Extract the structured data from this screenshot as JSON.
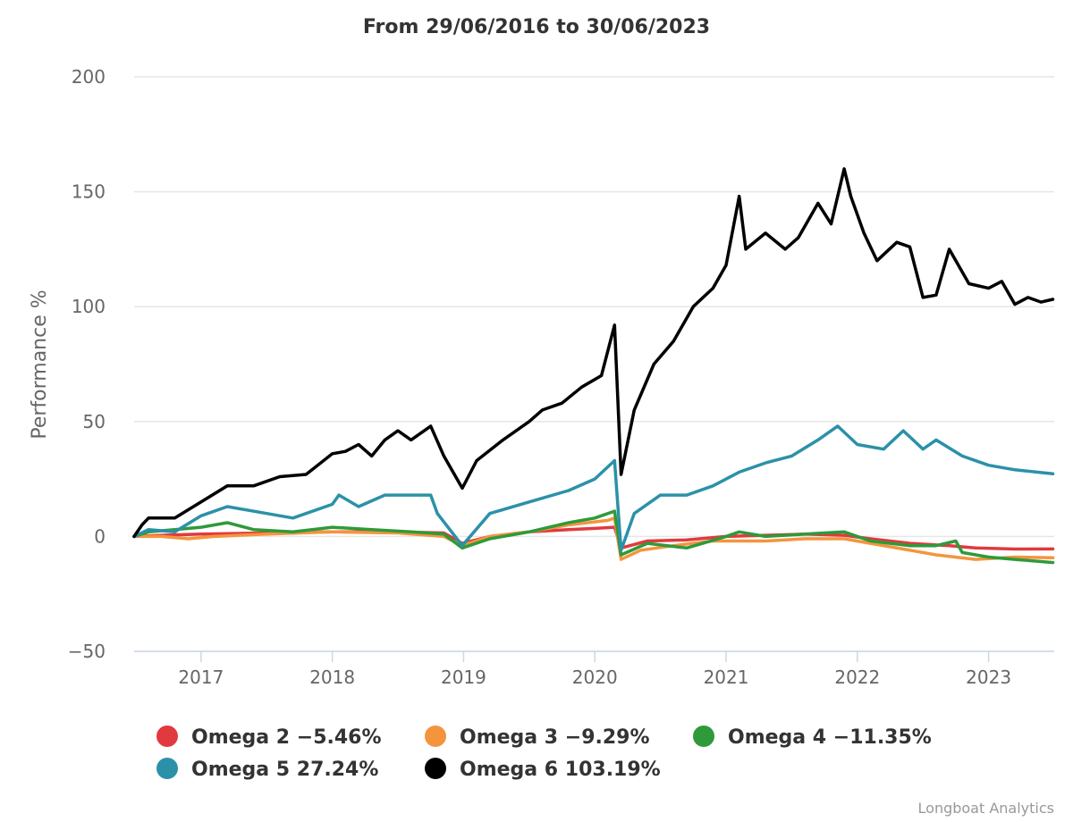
{
  "chart_data": {
    "type": "line",
    "title": "From 29/06/2016 to 30/06/2023",
    "ylabel": "Performance %",
    "xlabel": "",
    "xlim": [
      2016.49,
      2023.5
    ],
    "ylim": [
      -50,
      200
    ],
    "y_ticks": [
      -50,
      0,
      50,
      100,
      150,
      200
    ],
    "x_ticks": [
      {
        "value": 2017,
        "label": "2017"
      },
      {
        "value": 2018,
        "label": "2018"
      },
      {
        "value": 2019,
        "label": "2019"
      },
      {
        "value": 2020,
        "label": "2020"
      },
      {
        "value": 2021,
        "label": "2021"
      },
      {
        "value": 2022,
        "label": "2022"
      },
      {
        "value": 2023,
        "label": "2023"
      }
    ],
    "grid": true,
    "legend_position": "bottom",
    "credits": "Longboat Analytics",
    "series": [
      {
        "name": "Omega 2",
        "legend_label": "Omega 2 -5.46%",
        "color": "#e03a3e",
        "points": [
          [
            2016.49,
            0
          ],
          [
            2016.7,
            0.5
          ],
          [
            2017.0,
            1
          ],
          [
            2017.5,
            1.5
          ],
          [
            2018.0,
            2
          ],
          [
            2018.5,
            2
          ],
          [
            2018.85,
            1.5
          ],
          [
            2018.99,
            -3
          ],
          [
            2019.2,
            0
          ],
          [
            2019.5,
            2
          ],
          [
            2019.8,
            3
          ],
          [
            2020.0,
            3.5
          ],
          [
            2020.15,
            4
          ],
          [
            2020.2,
            -5
          ],
          [
            2020.4,
            -2
          ],
          [
            2020.7,
            -1.5
          ],
          [
            2021.0,
            0
          ],
          [
            2021.3,
            0.5
          ],
          [
            2021.6,
            1
          ],
          [
            2021.9,
            0.5
          ],
          [
            2022.1,
            -1
          ],
          [
            2022.4,
            -3
          ],
          [
            2022.7,
            -4
          ],
          [
            2022.9,
            -5
          ],
          [
            2023.2,
            -5.5
          ],
          [
            2023.49,
            -5.46
          ]
        ]
      },
      {
        "name": "Omega 3",
        "legend_label": "Omega 3 -9.29%",
        "color": "#f4953e",
        "points": [
          [
            2016.49,
            0
          ],
          [
            2016.7,
            0
          ],
          [
            2016.9,
            -1
          ],
          [
            2017.1,
            0
          ],
          [
            2017.5,
            1
          ],
          [
            2018.0,
            2
          ],
          [
            2018.5,
            1.5
          ],
          [
            2018.85,
            0
          ],
          [
            2018.99,
            -4
          ],
          [
            2019.2,
            0
          ],
          [
            2019.5,
            2
          ],
          [
            2019.8,
            5
          ],
          [
            2020.1,
            7
          ],
          [
            2020.15,
            8
          ],
          [
            2020.2,
            -10
          ],
          [
            2020.35,
            -6
          ],
          [
            2020.6,
            -4
          ],
          [
            2020.9,
            -2
          ],
          [
            2021.3,
            -2
          ],
          [
            2021.6,
            -1
          ],
          [
            2021.9,
            -1
          ],
          [
            2022.1,
            -3
          ],
          [
            2022.4,
            -6
          ],
          [
            2022.6,
            -8
          ],
          [
            2022.9,
            -10
          ],
          [
            2023.2,
            -9
          ],
          [
            2023.49,
            -9.29
          ]
        ]
      },
      {
        "name": "Omega 4",
        "legend_label": "Omega 4 -11.35%",
        "color": "#2e9a3a",
        "points": [
          [
            2016.49,
            0
          ],
          [
            2016.6,
            2
          ],
          [
            2016.8,
            3
          ],
          [
            2017.0,
            4
          ],
          [
            2017.2,
            6
          ],
          [
            2017.4,
            3
          ],
          [
            2017.7,
            2
          ],
          [
            2018.0,
            4
          ],
          [
            2018.3,
            3
          ],
          [
            2018.6,
            2
          ],
          [
            2018.85,
            1
          ],
          [
            2018.99,
            -5
          ],
          [
            2019.2,
            -1
          ],
          [
            2019.5,
            2
          ],
          [
            2019.8,
            6
          ],
          [
            2020.0,
            8
          ],
          [
            2020.15,
            11
          ],
          [
            2020.2,
            -8
          ],
          [
            2020.4,
            -3
          ],
          [
            2020.7,
            -5
          ],
          [
            2021.0,
            0
          ],
          [
            2021.1,
            2
          ],
          [
            2021.3,
            0
          ],
          [
            2021.6,
            1
          ],
          [
            2021.9,
            2
          ],
          [
            2022.1,
            -2
          ],
          [
            2022.4,
            -4
          ],
          [
            2022.6,
            -4
          ],
          [
            2022.75,
            -2
          ],
          [
            2022.8,
            -7
          ],
          [
            2023.0,
            -9
          ],
          [
            2023.2,
            -10
          ],
          [
            2023.49,
            -11.35
          ]
        ]
      },
      {
        "name": "Omega 5",
        "legend_label": "Omega 5 27.24%",
        "color": "#2b91a8",
        "points": [
          [
            2016.49,
            0
          ],
          [
            2016.6,
            3
          ],
          [
            2016.8,
            2
          ],
          [
            2017.0,
            9
          ],
          [
            2017.2,
            13
          ],
          [
            2017.5,
            10
          ],
          [
            2017.7,
            8
          ],
          [
            2018.0,
            14
          ],
          [
            2018.05,
            18
          ],
          [
            2018.2,
            13
          ],
          [
            2018.4,
            18
          ],
          [
            2018.6,
            18
          ],
          [
            2018.75,
            18
          ],
          [
            2018.8,
            10
          ],
          [
            2018.99,
            -4
          ],
          [
            2019.2,
            10
          ],
          [
            2019.5,
            15
          ],
          [
            2019.8,
            20
          ],
          [
            2020.0,
            25
          ],
          [
            2020.15,
            33
          ],
          [
            2020.2,
            -6
          ],
          [
            2020.3,
            10
          ],
          [
            2020.5,
            18
          ],
          [
            2020.7,
            18
          ],
          [
            2020.9,
            22
          ],
          [
            2021.1,
            28
          ],
          [
            2021.3,
            32
          ],
          [
            2021.5,
            35
          ],
          [
            2021.7,
            42
          ],
          [
            2021.85,
            48
          ],
          [
            2022.0,
            40
          ],
          [
            2022.2,
            38
          ],
          [
            2022.35,
            46
          ],
          [
            2022.5,
            38
          ],
          [
            2022.6,
            42
          ],
          [
            2022.8,
            35
          ],
          [
            2023.0,
            31
          ],
          [
            2023.2,
            29
          ],
          [
            2023.49,
            27.24
          ]
        ]
      },
      {
        "name": "Omega 6",
        "legend_label": "Omega 6 103.19%",
        "color": "#000000",
        "points": [
          [
            2016.49,
            0
          ],
          [
            2016.55,
            5
          ],
          [
            2016.6,
            8
          ],
          [
            2016.8,
            8
          ],
          [
            2017.0,
            15
          ],
          [
            2017.2,
            22
          ],
          [
            2017.4,
            22
          ],
          [
            2017.6,
            26
          ],
          [
            2017.8,
            27
          ],
          [
            2018.0,
            36
          ],
          [
            2018.1,
            37
          ],
          [
            2018.2,
            40
          ],
          [
            2018.3,
            35
          ],
          [
            2018.4,
            42
          ],
          [
            2018.5,
            46
          ],
          [
            2018.6,
            42
          ],
          [
            2018.75,
            48
          ],
          [
            2018.85,
            35
          ],
          [
            2018.99,
            21
          ],
          [
            2019.1,
            33
          ],
          [
            2019.3,
            42
          ],
          [
            2019.5,
            50
          ],
          [
            2019.6,
            55
          ],
          [
            2019.75,
            58
          ],
          [
            2019.9,
            65
          ],
          [
            2020.05,
            70
          ],
          [
            2020.15,
            92
          ],
          [
            2020.2,
            27
          ],
          [
            2020.3,
            55
          ],
          [
            2020.45,
            75
          ],
          [
            2020.6,
            85
          ],
          [
            2020.75,
            100
          ],
          [
            2020.9,
            108
          ],
          [
            2021.0,
            118
          ],
          [
            2021.1,
            148
          ],
          [
            2021.15,
            125
          ],
          [
            2021.3,
            132
          ],
          [
            2021.45,
            125
          ],
          [
            2021.55,
            130
          ],
          [
            2021.7,
            145
          ],
          [
            2021.8,
            136
          ],
          [
            2021.9,
            160
          ],
          [
            2021.95,
            148
          ],
          [
            2022.05,
            132
          ],
          [
            2022.15,
            120
          ],
          [
            2022.3,
            128
          ],
          [
            2022.4,
            126
          ],
          [
            2022.5,
            104
          ],
          [
            2022.6,
            105
          ],
          [
            2022.7,
            125
          ],
          [
            2022.85,
            110
          ],
          [
            2023.0,
            108
          ],
          [
            2023.1,
            111
          ],
          [
            2023.2,
            101
          ],
          [
            2023.3,
            104
          ],
          [
            2023.4,
            102
          ],
          [
            2023.49,
            103.19
          ]
        ]
      }
    ]
  }
}
